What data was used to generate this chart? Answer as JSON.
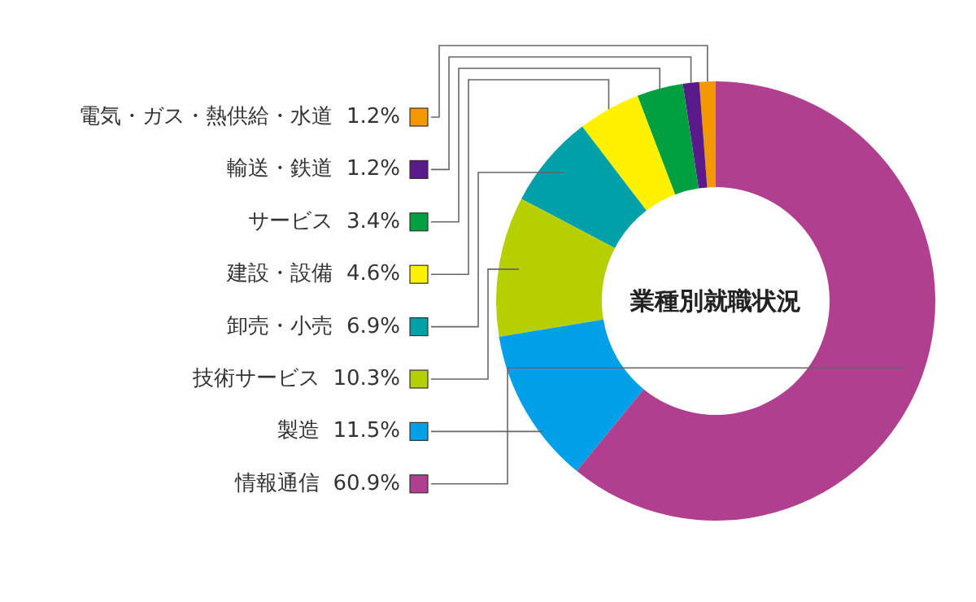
{
  "chart_data": {
    "type": "donut",
    "title": "業種別就職状況",
    "categories": [
      "電気・ガス・熱供給・水道",
      "輸送・鉄道",
      "サービス",
      "建設・設備",
      "卸売・小売",
      "技術サービス",
      "製造",
      "情報通信"
    ],
    "values": [
      1.2,
      1.2,
      3.4,
      4.6,
      6.9,
      10.3,
      11.5,
      60.9
    ],
    "colors": [
      "#f39800",
      "#5a1a8a",
      "#00a040",
      "#fff100",
      "#00a0a8",
      "#b5cf00",
      "#00a0e9",
      "#b03f8f"
    ],
    "value_labels": [
      "1.2%",
      "1.2%",
      "3.4%",
      "4.6%",
      "6.9%",
      "10.3%",
      "11.5%",
      "60.9%"
    ],
    "legend": "left"
  }
}
